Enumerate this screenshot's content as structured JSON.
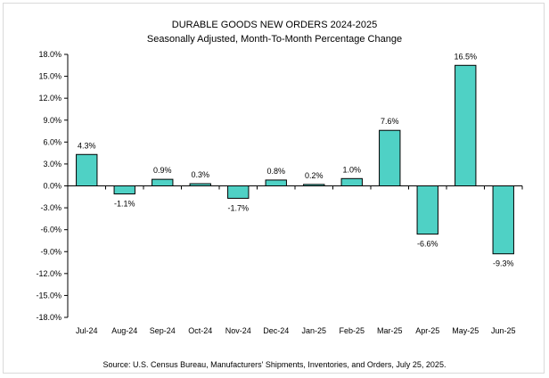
{
  "chart_data": {
    "type": "bar",
    "title": "DURABLE GOODS NEW ORDERS 2024-2025",
    "subtitle": "Seasonally Adjusted,  Month-To-Month Percentage Change",
    "source": "Source: U.S. Census Bureau, Manufacturers' Shipments, Inventories, and Orders, July 25, 2025.",
    "categories": [
      "Jul-24",
      "Aug-24",
      "Sep-24",
      "Oct-24",
      "Nov-24",
      "Dec-24",
      "Jan-25",
      "Feb-25",
      "Mar-25",
      "Apr-25",
      "May-25",
      "Jun-25"
    ],
    "values": [
      4.3,
      -1.1,
      0.9,
      0.3,
      -1.7,
      0.8,
      0.2,
      1.0,
      7.6,
      -6.6,
      16.5,
      -9.3
    ],
    "value_labels": [
      "4.3%",
      "-1.1%",
      "0.9%",
      "0.3%",
      "-1.7%",
      "0.8%",
      "0.2%",
      "1.0%",
      "7.6%",
      "-6.6%",
      "16.5%",
      "-9.3%"
    ],
    "yticks": [
      18,
      15,
      12,
      9,
      6,
      3,
      0,
      -3,
      -6,
      -9,
      -12,
      -15,
      -18
    ],
    "ytick_labels": [
      "18.0%",
      "15.0%",
      "12.0%",
      "9.0%",
      "6.0%",
      "3.0%",
      "0.0%",
      "-3.0%",
      "-6.0%",
      "-9.0%",
      "-12.0%",
      "-15.0%",
      "-18.0%"
    ],
    "ylim": [
      -18,
      18
    ],
    "xlabel": "",
    "ylabel": "",
    "grid": false,
    "legend": "none",
    "bar_color": "#4fd1c5",
    "bar_edge_color": "#000000"
  }
}
